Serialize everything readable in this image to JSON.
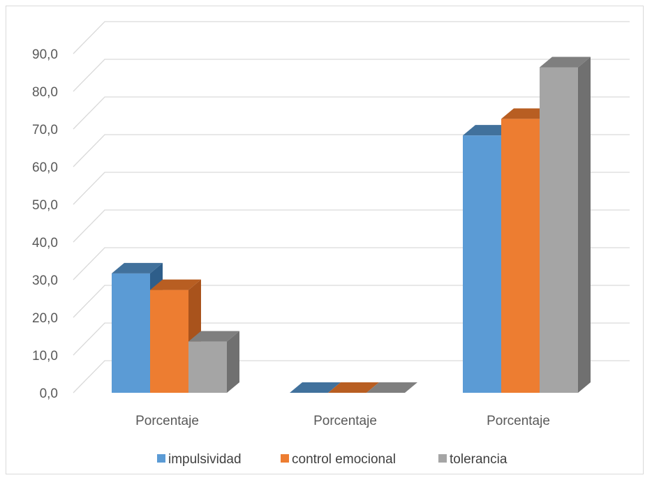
{
  "chart_data": {
    "type": "bar",
    "categories": [
      "Porcentaje",
      "Porcentaje",
      "Porcentaje"
    ],
    "series": [
      {
        "name": "impulsividad",
        "values": [
          31.7,
          0.0,
          68.3
        ],
        "color": "#5b9bd5",
        "top": "#41719c",
        "side": "#2e5e8a"
      },
      {
        "name": "control emocional",
        "values": [
          27.3,
          0.0,
          72.7
        ],
        "color": "#ed7d31",
        "top": "#b85e22",
        "side": "#a9531c"
      },
      {
        "name": "tolerancia",
        "values": [
          13.6,
          0.0,
          86.4
        ],
        "color": "#a5a5a5",
        "top": "#7f7f7f",
        "side": "#707070"
      }
    ],
    "ylim": [
      0,
      90
    ],
    "yticks": [
      "0,0",
      "10,0",
      "20,0",
      "30,0",
      "40,0",
      "50,0",
      "60,0",
      "70,0",
      "80,0",
      "90,0"
    ],
    "grid": true,
    "legend": "bottom",
    "title": "",
    "xlabel": "",
    "ylabel": ""
  }
}
